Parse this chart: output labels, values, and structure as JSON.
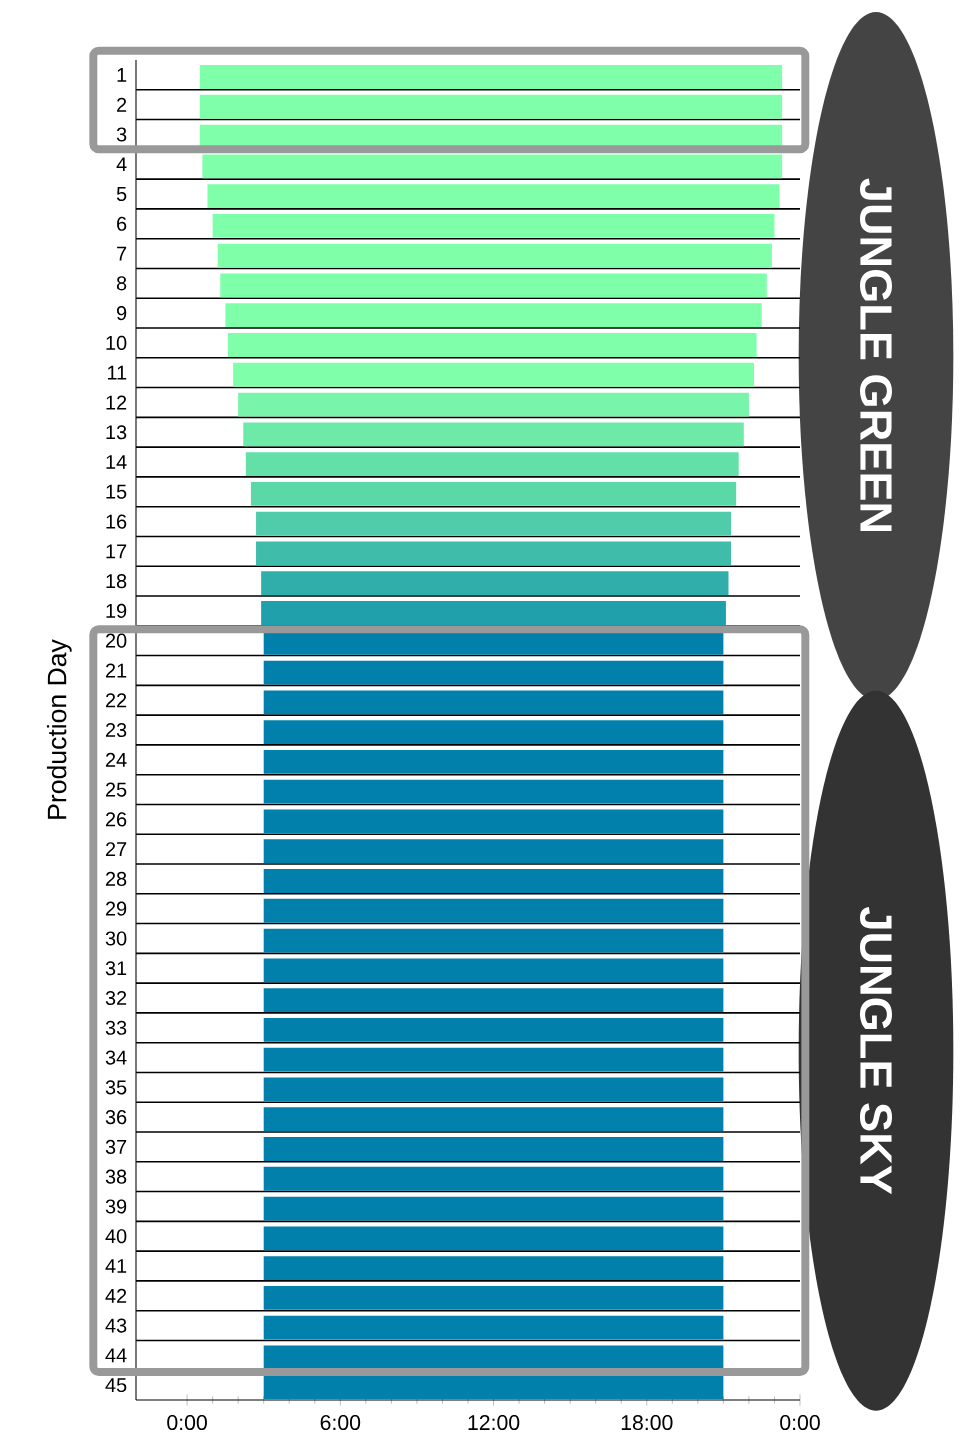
{
  "chart_data": {
    "type": "bar",
    "orientation": "horizontal",
    "ylabel": "Production Day",
    "categories": [
      "1",
      "2",
      "3",
      "4",
      "5",
      "6",
      "7",
      "8",
      "9",
      "10",
      "11",
      "12",
      "13",
      "14",
      "15",
      "16",
      "17",
      "18",
      "19",
      "20",
      "21",
      "22",
      "23",
      "24",
      "25",
      "26",
      "27",
      "28",
      "29",
      "30",
      "31",
      "32",
      "33",
      "34",
      "35",
      "36",
      "37",
      "38",
      "39",
      "40",
      "41",
      "42",
      "43",
      "44",
      "45"
    ],
    "base": [
      0.5,
      0.5,
      0.5,
      0.6,
      0.8,
      1.0,
      1.2,
      1.3,
      1.5,
      1.6,
      1.8,
      2.0,
      2.2,
      2.3,
      2.5,
      2.7,
      2.7,
      2.9,
      2.9,
      3.0,
      3.0,
      3.0,
      3.0,
      3.0,
      3.0,
      3.0,
      3.0,
      3.0,
      3.0,
      3.0,
      3.0,
      3.0,
      3.0,
      3.0,
      3.0,
      3.0,
      3.0,
      3.0,
      3.0,
      3.0,
      3.0,
      3.0,
      3.0,
      3.0,
      3.0
    ],
    "values": [
      22.8,
      22.8,
      22.8,
      22.7,
      22.4,
      22.0,
      21.7,
      21.4,
      21.0,
      20.7,
      20.4,
      20.0,
      19.6,
      19.3,
      19.0,
      18.6,
      18.6,
      18.3,
      18.2,
      18.0,
      18.0,
      18.0,
      18.0,
      18.0,
      18.0,
      18.0,
      18.0,
      18.0,
      18.0,
      18.0,
      18.0,
      18.0,
      18.0,
      18.0,
      18.0,
      18.0,
      18.0,
      18.0,
      18.0,
      18.0,
      18.0,
      18.0,
      18.0,
      18.0,
      18.0
    ],
    "colors": [
      "#80ffaa",
      "#80ffaa",
      "#80ffaa",
      "#80ffaa",
      "#80ffaa",
      "#80ffaa",
      "#80ffaa",
      "#80ffaa",
      "#80ffaa",
      "#80ffaa",
      "#80ffaa",
      "#78f5aa",
      "#6eeaa8",
      "#62e0a8",
      "#5ad8a8",
      "#50ccaa",
      "#40bcaa",
      "#30aeaa",
      "#20a0aa",
      "#0080aa",
      "#0080aa",
      "#0080aa",
      "#0080aa",
      "#0080aa",
      "#0080aa",
      "#0080aa",
      "#0080aa",
      "#0080aa",
      "#0080aa",
      "#0080aa",
      "#0080aa",
      "#0080aa",
      "#0080aa",
      "#0080aa",
      "#0080aa",
      "#0080aa",
      "#0080aa",
      "#0080aa",
      "#0080aa",
      "#0080aa",
      "#0080aa",
      "#0080aa",
      "#0080aa",
      "#0080aa",
      "#0080aa"
    ],
    "xlim": [
      -2,
      24
    ],
    "xticks": [
      {
        "value": 0,
        "label": "0:00"
      },
      {
        "value": 6,
        "label": "6:00"
      },
      {
        "value": 12,
        "label": "12:00"
      },
      {
        "value": 18,
        "label": "18:00"
      },
      {
        "value": 24,
        "label": "0:00"
      }
    ],
    "grid": "y",
    "annotations": [
      "JUNGLE GREEN",
      "JUNGLE SKY"
    ]
  }
}
